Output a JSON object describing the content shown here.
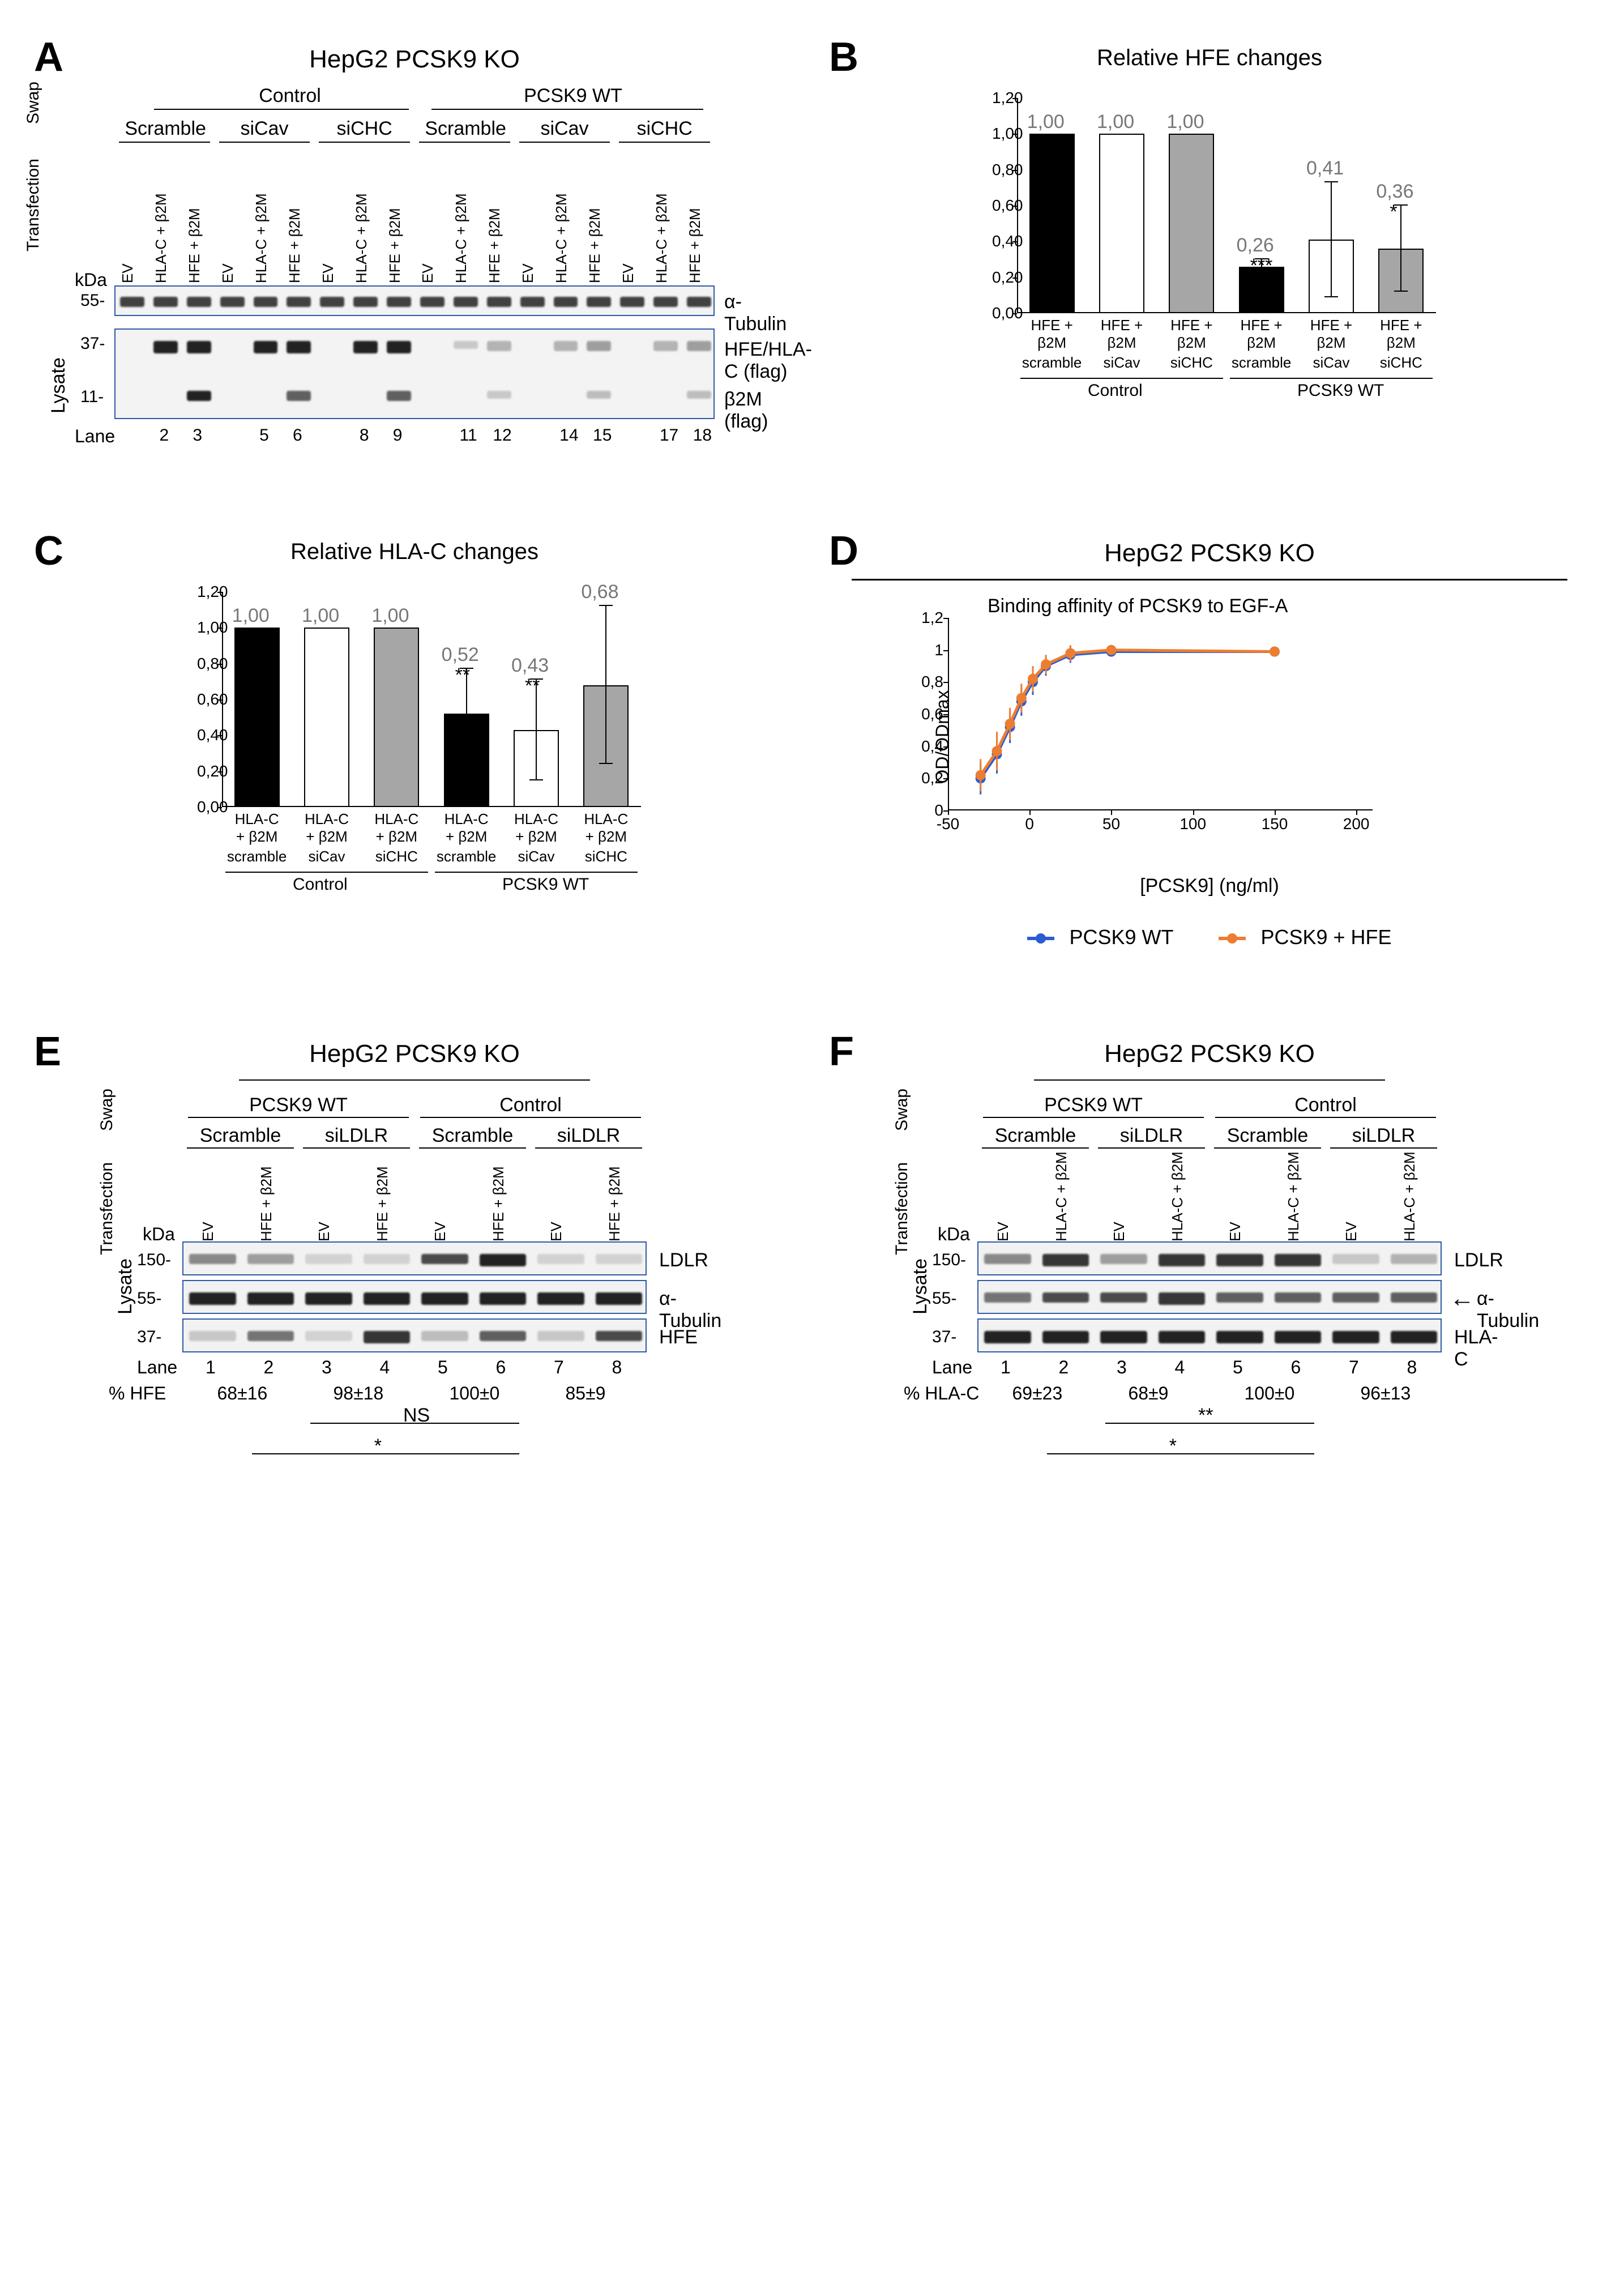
{
  "colors": {
    "bar_black": "#000000",
    "bar_white": "#ffffff",
    "bar_gray": "#a6a6a6",
    "blot_border": "#2e5aa8",
    "value_gray": "#7d7d7d",
    "series_blue": "#2b5dd1",
    "series_orange": "#ed7d31"
  },
  "panelA": {
    "label": "A",
    "cell_line": "HepG2 PCSK9 KO",
    "swap_groups": [
      "Control",
      "PCSK9 WT"
    ],
    "si_groups": [
      "Scramble",
      "siCav",
      "siCHC"
    ],
    "transfection_lanes": [
      "EV",
      "HLA-C + β2M",
      "HFE + β2M"
    ],
    "kda": [
      "55-",
      "37-",
      "11-"
    ],
    "row_labels": [
      "α-Tubulin",
      "HFE/HLA-C (flag)",
      "β2M (flag)"
    ],
    "lane_word": "Lane",
    "lane_numbers": [
      2,
      3,
      5,
      6,
      8,
      9,
      11,
      12,
      14,
      15,
      17,
      18
    ],
    "side_words": {
      "swap": "Swap",
      "transfection": "Transfection",
      "lysate": "Lysate",
      "kda": "kDa"
    }
  },
  "panelB": {
    "label": "B",
    "title": "Relative HFE changes",
    "yticks": [
      "0,00",
      "0,20",
      "0,40",
      "0,60",
      "0,80",
      "1,00",
      "1,20"
    ],
    "ymax": 1.2,
    "bars": [
      {
        "value": 1.0,
        "disp": "1,00",
        "fill": "#000000",
        "xlabel": "HFE +\nβ2M",
        "si": "scramble",
        "err": 0,
        "sig": ""
      },
      {
        "value": 1.0,
        "disp": "1,00",
        "fill": "#ffffff",
        "xlabel": "HFE +\nβ2M",
        "si": "siCav",
        "err": 0,
        "sig": ""
      },
      {
        "value": 1.0,
        "disp": "1,00",
        "fill": "#a6a6a6",
        "xlabel": "HFE +\nβ2M",
        "si": "siCHC",
        "err": 0,
        "sig": ""
      },
      {
        "value": 0.26,
        "disp": "0,26",
        "fill": "#000000",
        "xlabel": "HFE +\nβ2M",
        "si": "scramble",
        "err": 0.04,
        "sig": "***"
      },
      {
        "value": 0.41,
        "disp": "0,41",
        "fill": "#ffffff",
        "xlabel": "HFE +\nβ2M",
        "si": "siCav",
        "err": 0.32,
        "sig": ""
      },
      {
        "value": 0.36,
        "disp": "0,36",
        "fill": "#a6a6a6",
        "xlabel": "HFE +\nβ2M",
        "si": "siCHC",
        "err": 0.24,
        "sig": "*"
      }
    ],
    "group_labels": [
      "Control",
      "PCSK9 WT"
    ]
  },
  "panelC": {
    "label": "C",
    "title": "Relative HLA-C changes",
    "yticks": [
      "0,00",
      "0,20",
      "0,40",
      "0,60",
      "0,80",
      "1,00",
      "1,20"
    ],
    "ymax": 1.2,
    "bars": [
      {
        "value": 1.0,
        "disp": "1,00",
        "fill": "#000000",
        "xlabel": "HLA-C\n+ β2M",
        "si": "scramble",
        "err": 0,
        "sig": ""
      },
      {
        "value": 1.0,
        "disp": "1,00",
        "fill": "#ffffff",
        "xlabel": "HLA-C\n+ β2M",
        "si": "siCav",
        "err": 0,
        "sig": ""
      },
      {
        "value": 1.0,
        "disp": "1,00",
        "fill": "#a6a6a6",
        "xlabel": "HLA-C\n+ β2M",
        "si": "siCHC",
        "err": 0,
        "sig": ""
      },
      {
        "value": 0.52,
        "disp": "0,52",
        "fill": "#000000",
        "xlabel": "HLA-C\n+ β2M",
        "si": "scramble",
        "err": 0.25,
        "sig": "**"
      },
      {
        "value": 0.43,
        "disp": "0,43",
        "fill": "#ffffff",
        "xlabel": "HLA-C\n+ β2M",
        "si": "siCav",
        "err": 0.28,
        "sig": "**"
      },
      {
        "value": 0.68,
        "disp": "0,68",
        "fill": "#a6a6a6",
        "xlabel": "HLA-C\n+ β2M",
        "si": "siCHC",
        "err": 0.44,
        "sig": ""
      }
    ],
    "group_labels": [
      "Control",
      "PCSK9 WT"
    ]
  },
  "panelD": {
    "label": "D",
    "cell_line": "HepG2 PCSK9 KO",
    "inner_title": "Binding affinity of PCSK9 to EGF-A",
    "xlabel": "[PCSK9] (ng/ml)",
    "ylabel": "OD/ODmax",
    "xticks": [
      -50,
      0,
      50,
      100,
      150,
      200
    ],
    "yticks": [
      "0",
      "0,2",
      "0,4",
      "0,6",
      "0,8",
      "1",
      "1,2"
    ],
    "xlim": [
      -50,
      210
    ],
    "ylim": [
      0,
      1.2
    ],
    "series": [
      {
        "name": "PCSK9 WT",
        "color": "#2b5dd1",
        "points": [
          {
            "x": -30,
            "y": 0.2,
            "err": 0.1
          },
          {
            "x": -20,
            "y": 0.35,
            "err": 0.12
          },
          {
            "x": -12,
            "y": 0.52,
            "err": 0.1
          },
          {
            "x": -5,
            "y": 0.68,
            "err": 0.09
          },
          {
            "x": 2,
            "y": 0.8,
            "err": 0.08
          },
          {
            "x": 10,
            "y": 0.9,
            "err": 0.06
          },
          {
            "x": 25,
            "y": 0.97,
            "err": 0.05
          },
          {
            "x": 50,
            "y": 0.99,
            "err": 0.03
          },
          {
            "x": 150,
            "y": 0.99,
            "err": 0.02
          }
        ]
      },
      {
        "name": "PCSK9 + HFE",
        "color": "#ed7d31",
        "points": [
          {
            "x": -30,
            "y": 0.22,
            "err": 0.1
          },
          {
            "x": -20,
            "y": 0.37,
            "err": 0.12
          },
          {
            "x": -12,
            "y": 0.54,
            "err": 0.1
          },
          {
            "x": -5,
            "y": 0.7,
            "err": 0.09
          },
          {
            "x": 2,
            "y": 0.82,
            "err": 0.08
          },
          {
            "x": 10,
            "y": 0.91,
            "err": 0.06
          },
          {
            "x": 25,
            "y": 0.98,
            "err": 0.05
          },
          {
            "x": 50,
            "y": 1.0,
            "err": 0.03
          },
          {
            "x": 150,
            "y": 0.99,
            "err": 0.02
          }
        ]
      }
    ]
  },
  "panelE": {
    "label": "E",
    "title": "HepG2 PCSK9 KO",
    "swap_groups": [
      "PCSK9 WT",
      "Control"
    ],
    "si_groups": [
      "Scramble",
      "siLDLR"
    ],
    "transfection_lanes": [
      "EV",
      "HFE + β2M"
    ],
    "kda": [
      "150-",
      "55-",
      "37-"
    ],
    "row_labels": [
      "LDLR",
      "α-Tubulin",
      "HFE"
    ],
    "lane_word": "Lane",
    "lane_numbers": [
      1,
      2,
      3,
      4,
      5,
      6,
      7,
      8
    ],
    "percent_label": "% HFE",
    "percent_values": [
      "68±16",
      "98±18",
      "100±0",
      "85±9"
    ],
    "sig_lines": [
      {
        "text": "NS",
        "span": "inner"
      },
      {
        "text": "*",
        "span": "outer"
      }
    ],
    "side_words": {
      "swap": "Swap",
      "transfection": "Transfection",
      "lysate": "Lysate",
      "kda": "kDa"
    }
  },
  "panelF": {
    "label": "F",
    "title": "HepG2 PCSK9 KO",
    "swap_groups": [
      "PCSK9 WT",
      "Control"
    ],
    "si_groups": [
      "Scramble",
      "siLDLR"
    ],
    "transfection_lanes": [
      "EV",
      "HLA-C + β2M"
    ],
    "kda": [
      "150-",
      "55-",
      "37-"
    ],
    "row_labels": [
      "LDLR",
      "α-Tubulin",
      "HLA-C"
    ],
    "arrow": "←",
    "lane_word": "Lane",
    "lane_numbers": [
      1,
      2,
      3,
      4,
      5,
      6,
      7,
      8
    ],
    "percent_label": "% HLA-C",
    "percent_values": [
      "69±23",
      "68±9",
      "100±0",
      "96±13"
    ],
    "sig_lines": [
      {
        "text": "**",
        "span": "inner"
      },
      {
        "text": "*",
        "span": "outer"
      }
    ],
    "side_words": {
      "swap": "Swap",
      "transfection": "Transfection",
      "lysate": "Lysate",
      "kda": "kDa"
    }
  }
}
